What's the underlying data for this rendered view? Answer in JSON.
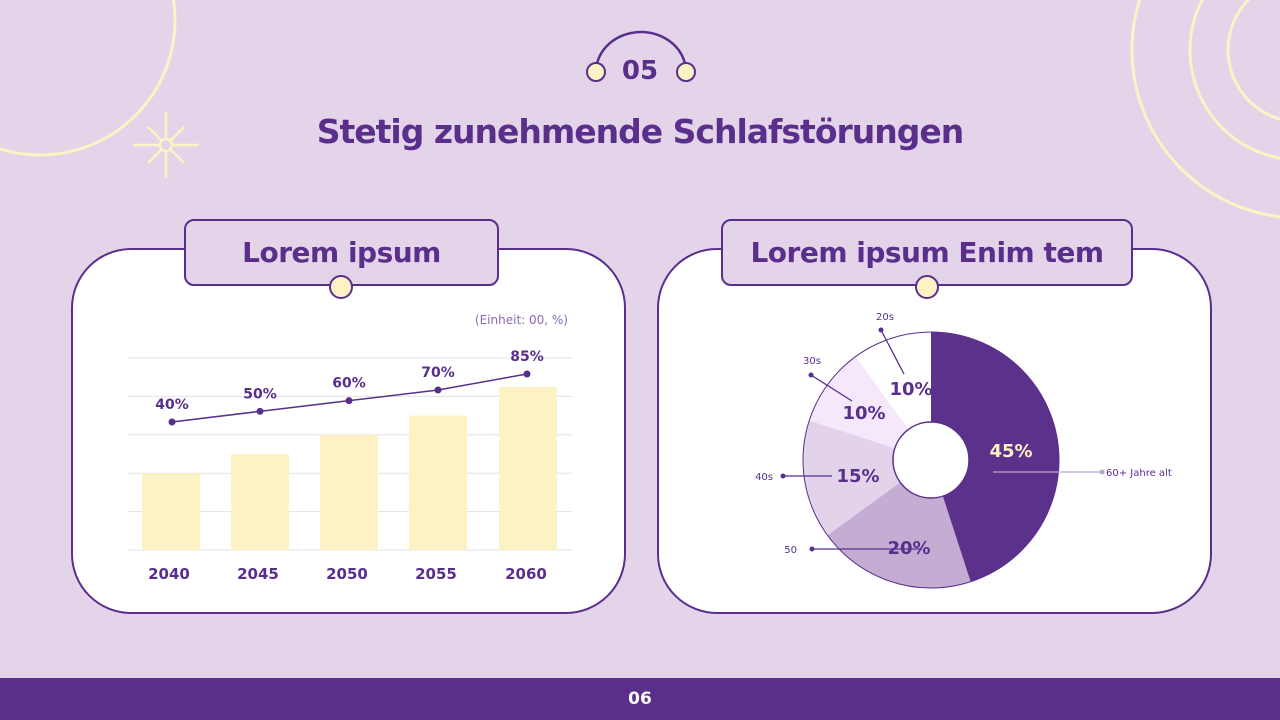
{
  "slide": {
    "number": "05",
    "title": "Stetig zunehmende Schlafstörungen",
    "page": "06"
  },
  "colors": {
    "background": "#e4d4ea",
    "accent": "#5a2f8c",
    "bar": "#fdf2c4",
    "card": "#ffffff"
  },
  "chart_data": [
    {
      "type": "bar",
      "title": "Lorem ipsum",
      "unit_note": "(Einheit: 00, %)",
      "categories": [
        "2040",
        "2045",
        "2050",
        "2055",
        "2060"
      ],
      "values": [
        40,
        50,
        60,
        70,
        85
      ],
      "line_values": [
        40,
        50,
        60,
        70,
        85
      ],
      "data_labels": [
        "40%",
        "50%",
        "60%",
        "70%",
        "85%"
      ],
      "ylim": [
        0,
        100
      ],
      "grid": true
    },
    {
      "type": "pie",
      "title": "Lorem ipsum Enim tem",
      "donut": true,
      "slices": [
        {
          "name": "60+ Jahre alt",
          "value": 45,
          "label": "45%",
          "color": "#5c318c"
        },
        {
          "name": "50",
          "value": 20,
          "label": "20%",
          "color": "#c4acd2"
        },
        {
          "name": "40s",
          "value": 15,
          "label": "15%",
          "color": "#e2d3ea"
        },
        {
          "name": "30s",
          "value": 10,
          "label": "10%",
          "color": "#f6e8fb"
        },
        {
          "name": "20s",
          "value": 10,
          "label": "10%",
          "color": "#ffffff"
        }
      ]
    }
  ]
}
